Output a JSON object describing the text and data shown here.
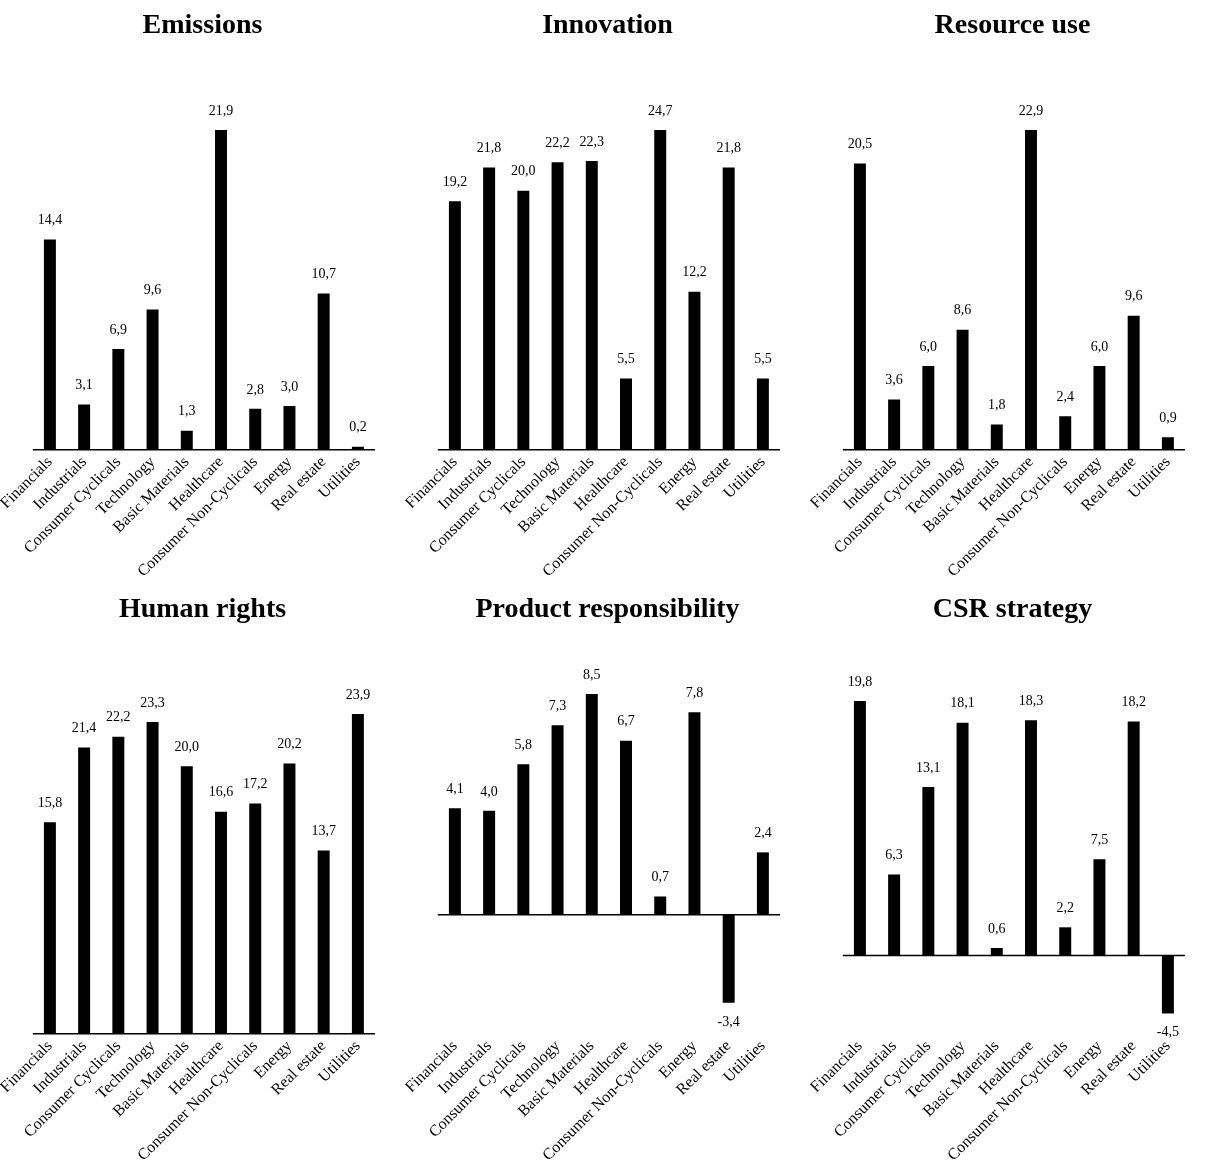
{
  "chart_data": [
    {
      "type": "bar",
      "title": "Emissions",
      "categories": [
        "Financials",
        "Industrials",
        "Consumer Cyclicals",
        "Technology",
        "Basic Materials",
        "Healthcare",
        "Consumer Non-Cyclicals",
        "Energy",
        "Real estate",
        "Utilities"
      ],
      "color": "#000000",
      "tick_labels": "x",
      "legend": false,
      "values": [
        14.4,
        3.1,
        6.9,
        9.6,
        1.3,
        21.9,
        2.8,
        3.0,
        10.7,
        0.2
      ],
      "value_labels": [
        "14,4",
        "3,1",
        "6,9",
        "9,6",
        "1,3",
        "21,9",
        "2,8",
        "3,0",
        "10,7",
        "0,2"
      ]
    },
    {
      "type": "bar",
      "title": "Innovation",
      "categories": [
        "Financials",
        "Industrials",
        "Consumer Cyclicals",
        "Technology",
        "Basic Materials",
        "Healthcare",
        "Consumer Non-Cyclicals",
        "Energy",
        "Real estate",
        "Utilities"
      ],
      "color": "#000000",
      "tick_labels": "x",
      "legend": false,
      "values": [
        19.2,
        21.8,
        20.0,
        22.2,
        22.3,
        5.5,
        24.7,
        12.2,
        21.8,
        5.5
      ],
      "value_labels": [
        "19,2",
        "21,8",
        "20,0",
        "22,2",
        "22,3",
        "5,5",
        "24,7",
        "12,2",
        "21,8",
        "5,5"
      ]
    },
    {
      "type": "bar",
      "title": "Resource use",
      "categories": [
        "Financials",
        "Industrials",
        "Consumer Cyclicals",
        "Technology",
        "Basic Materials",
        "Healthcare",
        "Consumer Non-Cyclicals",
        "Energy",
        "Real estate",
        "Utilities"
      ],
      "color": "#000000",
      "tick_labels": "x",
      "legend": false,
      "values": [
        20.5,
        3.6,
        6.0,
        8.6,
        1.8,
        22.9,
        2.4,
        6.0,
        9.6,
        0.9
      ],
      "value_labels": [
        "20,5",
        "3,6",
        "6,0",
        "8,6",
        "1,8",
        "22,9",
        "2,4",
        "6,0",
        "9,6",
        "0,9"
      ]
    },
    {
      "type": "bar",
      "title": "Human rights",
      "categories": [
        "Financials",
        "Industrials",
        "Consumer Cyclicals",
        "Technology",
        "Basic Materials",
        "Healthcare",
        "Consumer Non-Cyclicals",
        "Energy",
        "Real estate",
        "Utilities"
      ],
      "color": "#000000",
      "tick_labels": "x",
      "legend": false,
      "values": [
        15.8,
        21.4,
        22.2,
        23.3,
        20.0,
        16.6,
        17.2,
        20.2,
        13.7,
        23.9
      ],
      "value_labels": [
        "15,8",
        "21,4",
        "22,2",
        "23,3",
        "20,0",
        "16,6",
        "17,2",
        "20,2",
        "13,7",
        "23,9"
      ]
    },
    {
      "type": "bar",
      "title": "Product responsibility",
      "categories": [
        "Financials",
        "Industrials",
        "Consumer Cyclicals",
        "Technology",
        "Basic Materials",
        "Healthcare",
        "Consumer Non-Cyclicals",
        "Energy",
        "Real estate",
        "Utilities"
      ],
      "color": "#000000",
      "tick_labels": "x",
      "legend": false,
      "values": [
        4.1,
        4.0,
        5.8,
        7.3,
        8.5,
        6.7,
        0.7,
        7.8,
        -3.4,
        2.4
      ],
      "value_labels": [
        "4,1",
        "4,0",
        "5,8",
        "7,3",
        "8,5",
        "6,7",
        "0,7",
        "7,8",
        "-3,4",
        "2,4"
      ]
    },
    {
      "type": "bar",
      "title": "CSR strategy",
      "categories": [
        "Financials",
        "Industrials",
        "Consumer Cyclicals",
        "Technology",
        "Basic Materials",
        "Healthcare",
        "Consumer Non-Cyclicals",
        "Energy",
        "Real estate",
        "Utilities"
      ],
      "color": "#000000",
      "tick_labels": "x",
      "legend": false,
      "values": [
        19.8,
        6.3,
        13.1,
        18.1,
        0.6,
        18.3,
        2.2,
        7.5,
        18.2,
        -4.5
      ],
      "value_labels": [
        "19,8",
        "6,3",
        "13,1",
        "18,1",
        "0,6",
        "18,3",
        "2,2",
        "7,5",
        "18,2",
        "-4,5"
      ]
    }
  ]
}
